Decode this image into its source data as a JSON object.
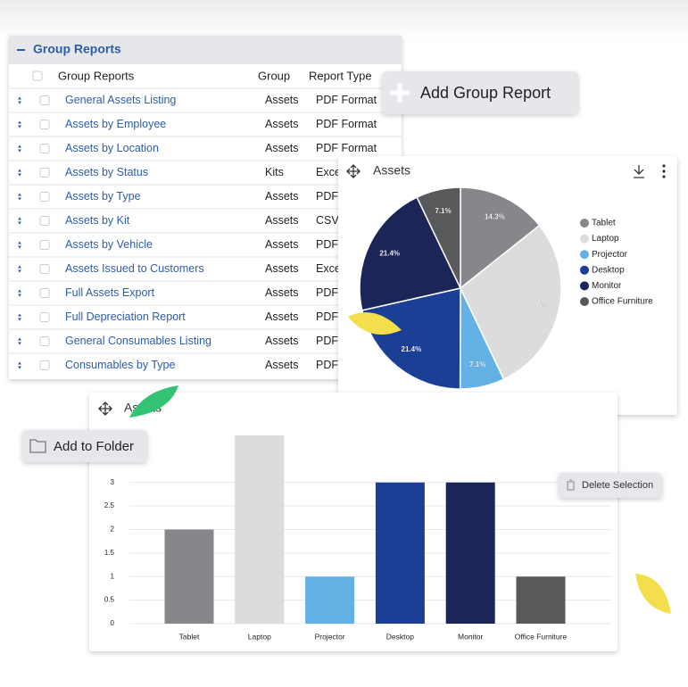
{
  "panel": {
    "title": "Group Reports",
    "columns": [
      "Group Reports",
      "Group",
      "Report Type"
    ],
    "rows": [
      [
        "General Assets Listing",
        "Assets",
        "PDF Format"
      ],
      [
        "Assets by Employee",
        "Assets",
        "PDF Format"
      ],
      [
        "Assets by Location",
        "Assets",
        "PDF Format"
      ],
      [
        "Assets by Status",
        "Kits",
        "Excel Format"
      ],
      [
        "Assets by Type",
        "Assets",
        "PDF Format"
      ],
      [
        "Assets by Kit",
        "Assets",
        "CSV Format"
      ],
      [
        "Assets by Vehicle",
        "Assets",
        "PDF Format"
      ],
      [
        "Assets Issued to Customers",
        "Assets",
        "Excel Format"
      ],
      [
        "Full Assets Export",
        "Assets",
        "PDF Format"
      ],
      [
        "Full Depreciation Report",
        "Assets",
        "PDF Format"
      ],
      [
        "General Consumables Listing",
        "Assets",
        "PDF Format"
      ],
      [
        "Consumables by Type",
        "Assets",
        "PDF Format"
      ]
    ]
  },
  "buttons": {
    "add_group_report": "Add Group Report",
    "add_to_folder": "Add to Folder",
    "delete_selection": "Delete Selection"
  },
  "chart_data": [
    {
      "type": "pie",
      "title": "Assets",
      "categories": [
        "Tablet",
        "Laptop",
        "Projector",
        "Desktop",
        "Monitor",
        "Office Furniture"
      ],
      "values": [
        14.3,
        28.6,
        7.1,
        21.4,
        21.4,
        7.1
      ],
      "value_labels": [
        "14.3%",
        "28.6%",
        "7.1%",
        "21.4%",
        "21.4%",
        "7.1%"
      ],
      "colors": [
        "#85878b",
        "#dcdcdc",
        "#64b1e6",
        "#1b3f94",
        "#1b2558",
        "#58595b"
      ]
    },
    {
      "type": "bar",
      "title": "Assets",
      "categories": [
        "Tablet",
        "Laptop",
        "Projector",
        "Desktop",
        "Monitor",
        "Office Furniture"
      ],
      "values": [
        2,
        4,
        1,
        3,
        3,
        1
      ],
      "colors": [
        "#85878b",
        "#dcdcdc",
        "#64b1e6",
        "#1b3f94",
        "#1b2558",
        "#58595b"
      ],
      "ylim": [
        0,
        4
      ],
      "yticks": [
        0,
        0.5,
        1,
        1.5,
        2,
        2.5,
        3
      ],
      "grid": true
    }
  ]
}
